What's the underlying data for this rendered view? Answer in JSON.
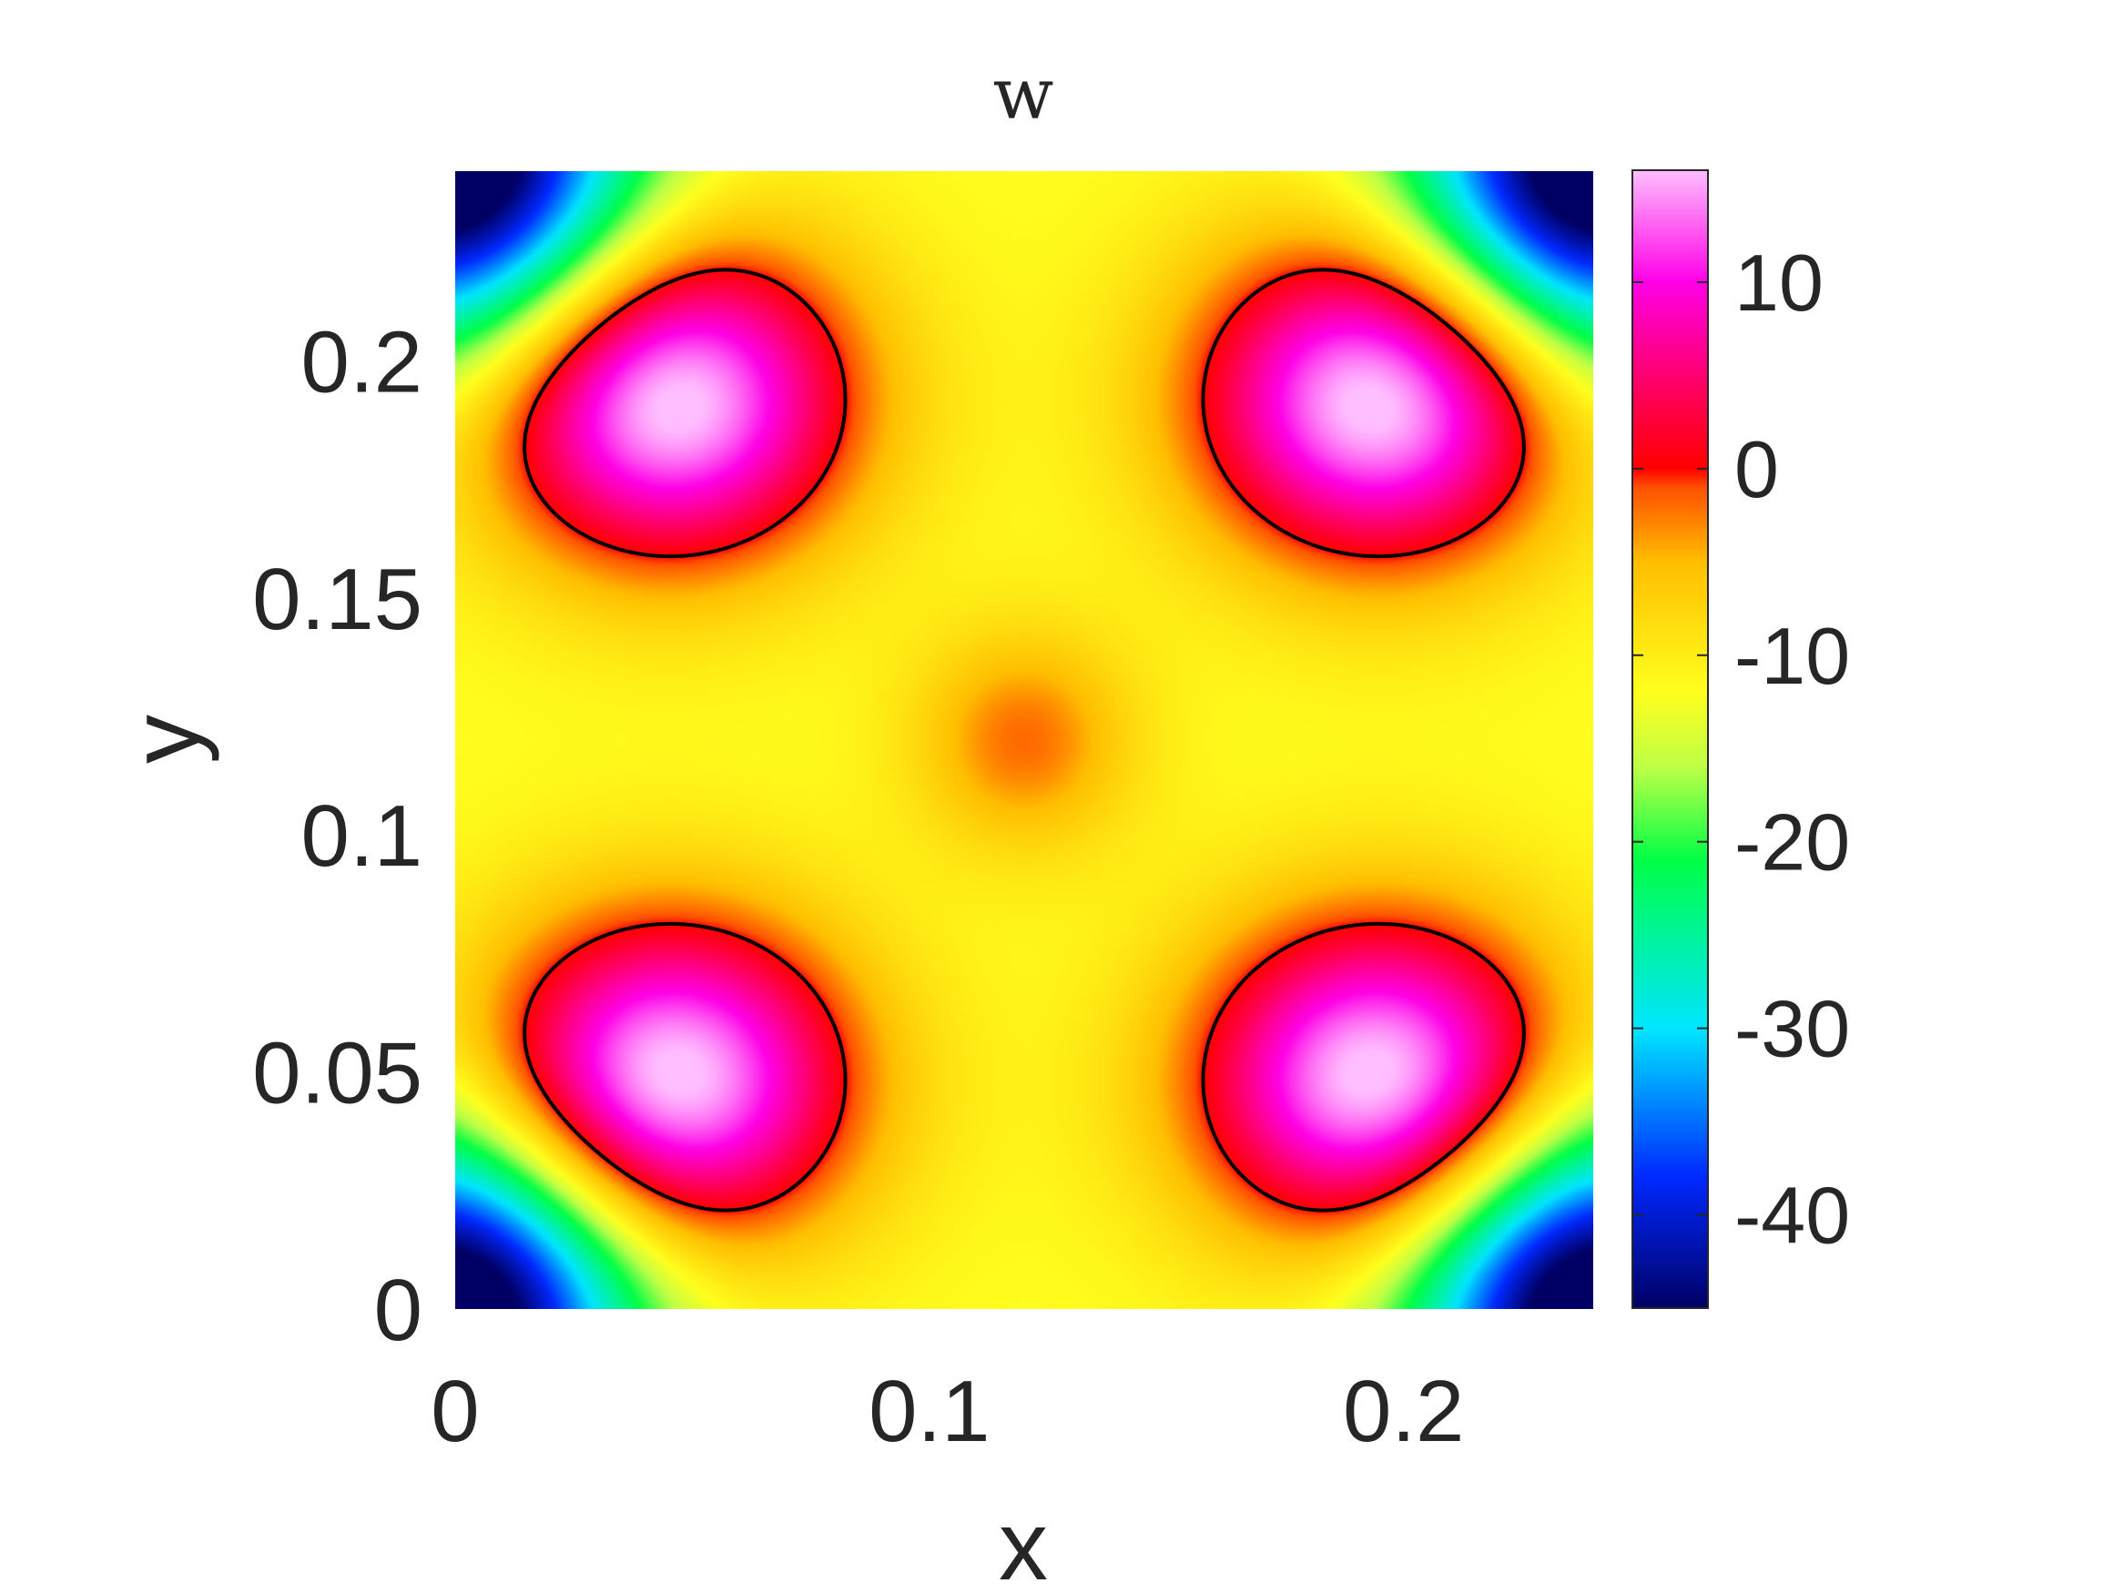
{
  "chart_data": {
    "type": "heatmap",
    "title": "w",
    "xlabel": "x",
    "ylabel": "y",
    "xlim": [
      0,
      0.24
    ],
    "ylim": [
      0,
      0.24
    ],
    "x_ticks": [
      "0",
      "0.1",
      "0.2"
    ],
    "x_tick_values": [
      0,
      0.1,
      0.2
    ],
    "y_ticks": [
      "0",
      "0.05",
      "0.1",
      "0.15",
      "0.2"
    ],
    "y_tick_values": [
      0,
      0.05,
      0.1,
      0.15,
      0.2
    ],
    "colorbar": {
      "range": [
        -45,
        16
      ],
      "ticks": [
        "10",
        "0",
        "-10",
        "-20",
        "-30",
        "-40"
      ],
      "tick_values": [
        10,
        0,
        -10,
        -20,
        -30,
        -40
      ],
      "colormap": "hsv-like: navy, blue, cyan, green, yellow, orange, red, magenta, light pink"
    },
    "field": {
      "description": "4-fold symmetric pattern on a periodic square cell",
      "center_value": -2,
      "saddle_value": -12,
      "lobe_max": 16,
      "corner_min": -45,
      "lobe_centers": [
        [
          0.045,
          0.048
        ],
        [
          0.195,
          0.048
        ],
        [
          0.045,
          0.192
        ],
        [
          0.195,
          0.192
        ]
      ]
    },
    "contours": [
      {
        "level": 0,
        "color": "#000000"
      }
    ],
    "grid": false,
    "legend": "none"
  }
}
